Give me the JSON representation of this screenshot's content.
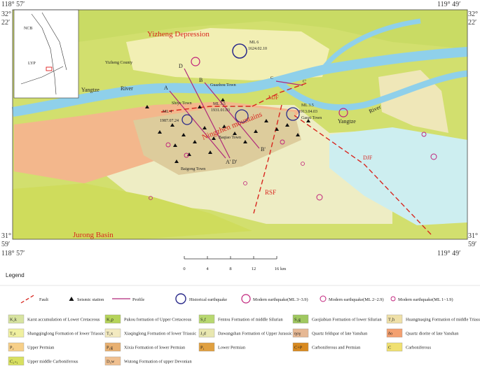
{
  "map": {
    "corners": {
      "lon_west": "118°  57′",
      "lon_east": "119°  49′",
      "lat_north_deg": "32°",
      "lat_north_min": "22′",
      "lat_south_deg": "31°",
      "lat_south_min": "59′"
    },
    "inset_labels": [
      "NCB",
      "LYP"
    ],
    "labels": [
      "Yizheng Depression",
      "ML 6",
      "1624.02.10",
      "Yizheng County",
      "Yangtze",
      "River",
      "Guazhou Town",
      "MJF",
      "C",
      "C'",
      "Shiye Town",
      "ML 4",
      "1987.07.24",
      "ML 3.5",
      "1931.01.03",
      "Ningzhen mountains",
      "Baqiao Town",
      "ML 3.5",
      "1913.04.03",
      "Gaozi Town",
      "Yangtze",
      "River",
      "Baigong Town",
      "DJF",
      "RSF",
      "Jurong Basin",
      "A",
      "A'",
      "B",
      "B'",
      "D",
      "D'"
    ]
  },
  "scale_bar": {
    "ticks": [
      "0",
      "4",
      "8",
      "12",
      "16"
    ],
    "unit": "km"
  },
  "legend": {
    "title": "Legend",
    "symbols": [
      "Fault",
      "Seismic station",
      "Profile",
      "Historical earthquake",
      "Modern earthquake(ML 3~3.9)",
      "Modern earthquake(ML 2~2.9)",
      "Modern earthquake(ML 1~1.9)"
    ],
    "units": [
      {
        "code": "K₂k",
        "desc": "Karst accumulation of Lower Cretaceous",
        "color": "#d7e3a0"
      },
      {
        "code": "K₂p",
        "desc": "Pukou formation of Upper Cretaceous",
        "color": "#b6d45a"
      },
      {
        "code": "S₂f",
        "desc": "Fentou Formation of middle Silurian",
        "color": "#b8d870"
      },
      {
        "code": "S₁g",
        "desc": "Gaojiabian Formation of lower Silurian",
        "color": "#a0c860"
      },
      {
        "code": "T₂h",
        "desc": "Huangmaqing Formation of middle Triassic",
        "color": "#efe0a8"
      },
      {
        "code": "T₁s",
        "desc": "Shangqinglong Formation of lower Triassic",
        "color": "#f0f0a0"
      },
      {
        "code": "T₁x",
        "desc": "Xiaqinglong Formation of lower Triassic",
        "color": "#f3eac0"
      },
      {
        "code": "J₃d",
        "desc": "Dawangshan Formation of Upper Jurassic",
        "color": "#e8e7b0"
      },
      {
        "code": "ηoγ",
        "desc": "Quartz feldspar of late Yanshan",
        "color": "#e6b894"
      },
      {
        "code": "δo",
        "desc": "Quartz diorite of late Yanshan",
        "color": "#f3a070"
      },
      {
        "code": "P₂",
        "desc": "Upper Permian",
        "color": "#f7cf88"
      },
      {
        "code": "P₁g",
        "desc": "Xixia Formation of lower Permian",
        "color": "#e8b070"
      },
      {
        "code": "P₁",
        "desc": "Lower Permian",
        "color": "#e0a040"
      },
      {
        "code": "C+P",
        "desc": "Carboniferous and Permian",
        "color": "#d98a20"
      },
      {
        "code": "C",
        "desc": "Carboniferous",
        "color": "#f0e070"
      },
      {
        "code": "C₂₊₁",
        "desc": "Upper middle Carboniferous",
        "color": "#d8e060"
      },
      {
        "code": "D₃w",
        "desc": "Wutong Formation of upper Devonian",
        "color": "#f0c090"
      }
    ]
  }
}
